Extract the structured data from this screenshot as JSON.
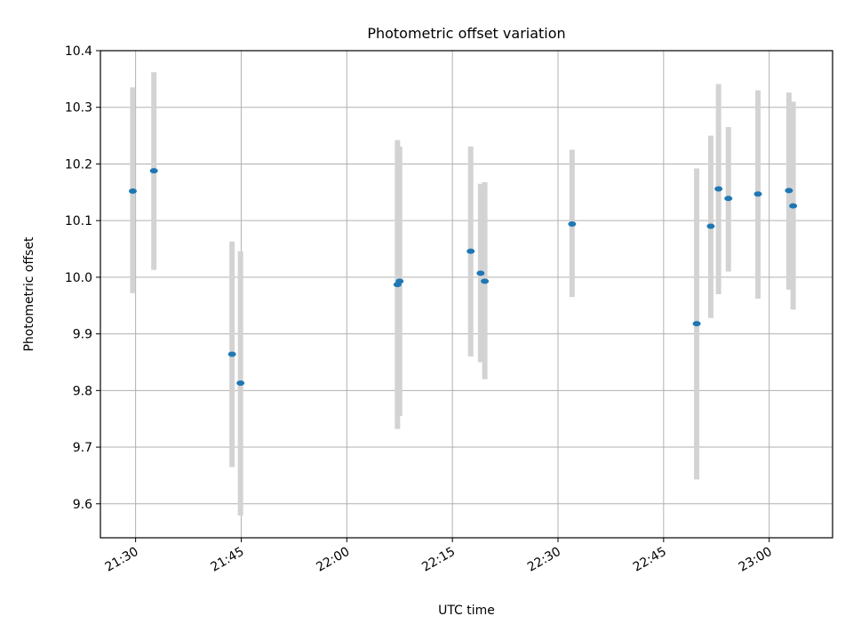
{
  "chart_data": {
    "type": "scatter",
    "title": "Photometric offset variation",
    "xlabel": "UTC time",
    "ylabel": "Photometric offset",
    "xlim": [
      "21:25",
      "23:09"
    ],
    "ylim": [
      9.54,
      10.4
    ],
    "xticks": [
      "21:30",
      "21:45",
      "22:00",
      "22:15",
      "22:30",
      "22:45",
      "23:00"
    ],
    "yticks": [
      "9.6",
      "9.7",
      "9.8",
      "9.9",
      "10.0",
      "10.1",
      "10.2",
      "10.3",
      "10.4"
    ],
    "grid": true,
    "colors": {
      "marker": "#1f77b4",
      "errorbar": "#d3d3d3",
      "grid": "#b0b0b0"
    },
    "series": [
      {
        "x": [
          "21:29:36",
          "21:32:36",
          "21:43:42",
          "21:44:54",
          "22:07:12",
          "22:07:30",
          "22:17:36",
          "22:19:00",
          "22:19:36",
          "22:32:00",
          "22:49:42",
          "22:51:42",
          "22:52:48",
          "22:54:12",
          "22:58:24",
          "23:02:48",
          "23:03:24"
        ],
        "y": [
          10.152,
          10.188,
          9.864,
          9.813,
          9.987,
          9.993,
          10.046,
          10.007,
          9.993,
          10.094,
          9.918,
          10.09,
          10.156,
          10.139,
          10.147,
          10.153,
          10.126
        ],
        "yerr_low": [
          9.972,
          10.013,
          9.665,
          9.579,
          9.732,
          9.755,
          9.86,
          9.85,
          9.82,
          9.965,
          9.643,
          9.928,
          9.97,
          10.01,
          9.962,
          9.978,
          9.943
        ],
        "yerr_high": [
          10.335,
          10.362,
          10.063,
          10.046,
          10.242,
          10.231,
          10.231,
          10.165,
          10.168,
          10.225,
          10.192,
          10.25,
          10.341,
          10.265,
          10.33,
          10.326,
          10.31
        ]
      }
    ]
  }
}
